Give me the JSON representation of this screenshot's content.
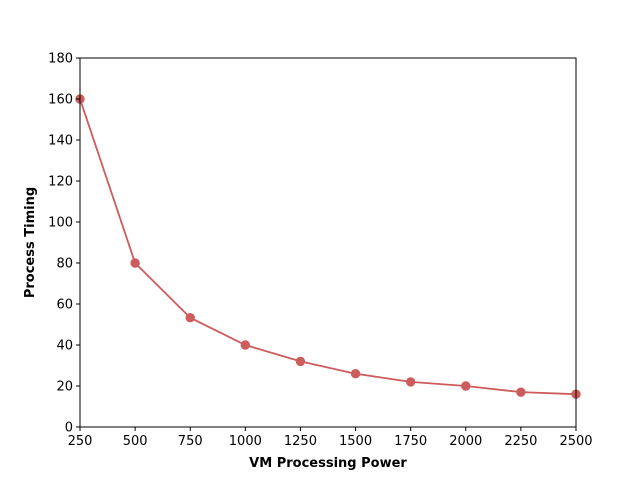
{
  "chart_data": {
    "type": "line",
    "title": "",
    "xlabel": "VM Processing Power",
    "ylabel": "Process Timing",
    "xlim": [
      250,
      2500
    ],
    "ylim": [
      0,
      180
    ],
    "x_ticks": [
      250,
      500,
      750,
      1000,
      1250,
      1500,
      1750,
      2000,
      2250,
      2500
    ],
    "y_ticks": [
      0,
      20,
      40,
      60,
      80,
      100,
      120,
      140,
      160,
      180
    ],
    "grid": false,
    "legend": "none",
    "series": [
      {
        "color": "#cd5c5c",
        "marker": "circle",
        "x": [
          250,
          500,
          750,
          1000,
          1250,
          1500,
          1750,
          2000,
          2250,
          2500
        ],
        "y": [
          160,
          80,
          53.3,
          40,
          32,
          26,
          22,
          20,
          17,
          16
        ]
      }
    ]
  }
}
